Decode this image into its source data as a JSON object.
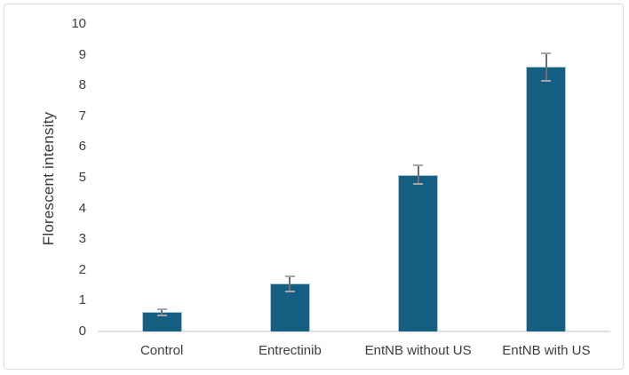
{
  "chart_data": {
    "type": "bar",
    "title": "",
    "categories": [
      "Control",
      "Entrectinib",
      "EntNB without US",
      "EntNB with US"
    ],
    "values": [
      0.63,
      1.55,
      5.1,
      8.6
    ],
    "error_bars": [
      0.1,
      0.25,
      0.3,
      0.45
    ],
    "xlabel": "",
    "ylabel": "Florescent intensity",
    "ylim": [
      0,
      10
    ],
    "yticks": [
      0,
      1,
      2,
      3,
      4,
      5,
      6,
      7,
      8,
      9,
      10
    ],
    "grid": false,
    "legend": false,
    "layout_hints": {
      "bar_color": "#156082",
      "bar_edge_color": "#a9c9d8",
      "error_line_color": "#6e6e6e",
      "error_cap_color": "#a6a6a6",
      "axis_line_color": "#e2e2e2",
      "text_color": "#3d3d3d",
      "frame_border_color": "#dedede",
      "background": "#ffffff"
    }
  }
}
